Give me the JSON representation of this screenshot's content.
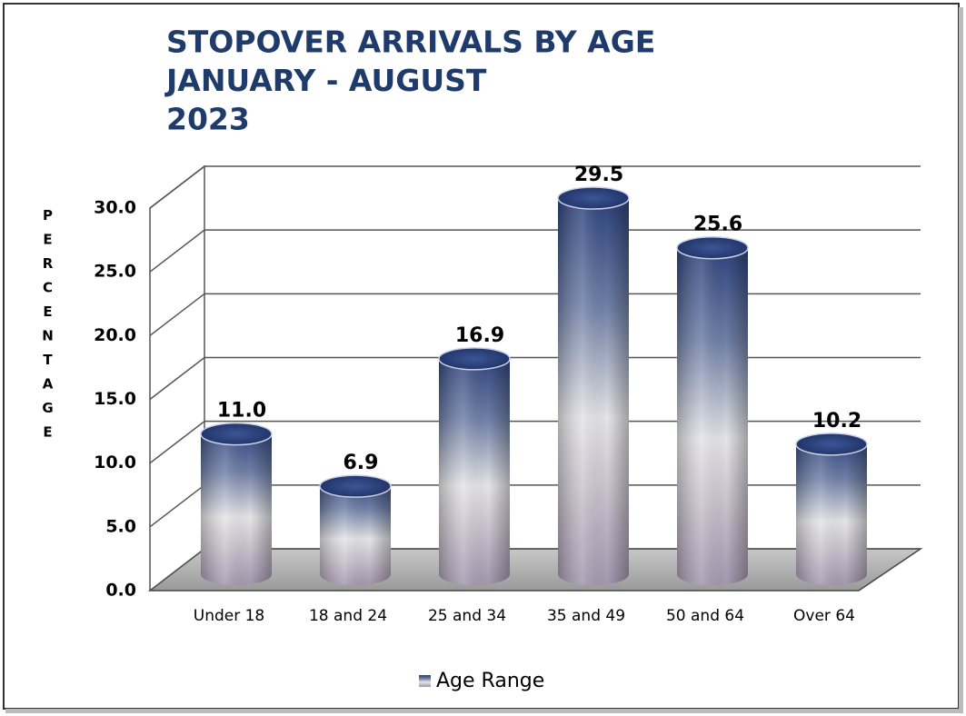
{
  "chart_data": {
    "type": "bar",
    "title": [
      "STOPOVER ARRIVALS BY AGE",
      "JANUARY - AUGUST",
      "2023"
    ],
    "y_label": "PERCENTAGE",
    "categories": [
      "Under 18",
      "18 and 24",
      "25 and 34",
      "35 and 49",
      "50 and 64",
      "Over 64"
    ],
    "series": [
      {
        "name": "Age Range",
        "color": "#2e4680",
        "values": [
          11.0,
          6.9,
          16.9,
          29.5,
          25.6,
          10.2
        ],
        "value_labels": [
          "11.0",
          "6.9",
          "16.9",
          "29.5",
          "25.6",
          "10.2"
        ]
      }
    ],
    "ylim": [
      0,
      30
    ],
    "yticks": [
      {
        "value": 0,
        "label": "0.0"
      },
      {
        "value": 5,
        "label": "5.0"
      },
      {
        "value": 10,
        "label": "10.0"
      },
      {
        "value": 15,
        "label": "15.0"
      },
      {
        "value": 20,
        "label": "20.0"
      },
      {
        "value": 25,
        "label": "25.0"
      },
      {
        "value": 30,
        "label": "30.0"
      }
    ],
    "grid": true,
    "legend": "bottom"
  }
}
